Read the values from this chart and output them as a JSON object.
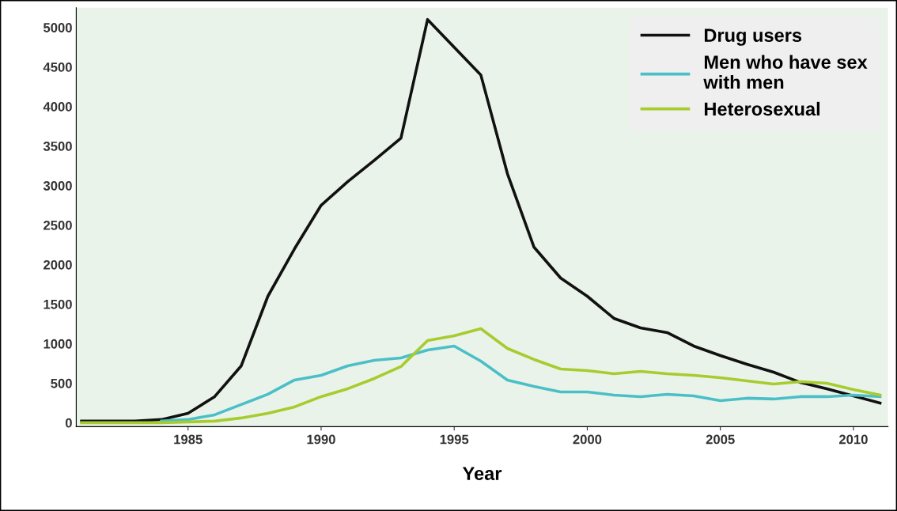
{
  "chart_data": {
    "type": "line",
    "xlabel": "Year",
    "x": [
      1981,
      1982,
      1983,
      1984,
      1985,
      1986,
      1987,
      1988,
      1989,
      1990,
      1991,
      1992,
      1993,
      1994,
      1995,
      1996,
      1997,
      1998,
      1999,
      2000,
      2001,
      2002,
      2003,
      2004,
      2005,
      2006,
      2007,
      2008,
      2009,
      2010,
      2011
    ],
    "series": [
      {
        "name": "Drug users",
        "color": "#111111",
        "values": [
          20,
          20,
          20,
          40,
          120,
          330,
          720,
          1600,
          2200,
          2750,
          3050,
          3320,
          3600,
          5100,
          4750,
          4400,
          3150,
          2220,
          1830,
          1600,
          1320,
          1200,
          1140,
          970,
          850,
          740,
          640,
          510,
          430,
          340,
          250
        ]
      },
      {
        "name": "Men who have sex\nwith men",
        "color": "#4bbfc8",
        "values": [
          null,
          null,
          null,
          20,
          40,
          100,
          230,
          360,
          540,
          600,
          720,
          790,
          820,
          920,
          970,
          780,
          540,
          460,
          390,
          390,
          350,
          330,
          360,
          340,
          280,
          310,
          300,
          330,
          330,
          350,
          330
        ]
      },
      {
        "name": "Heterosexual",
        "color": "#a6cc2e",
        "values": [
          0,
          0,
          0,
          0,
          10,
          20,
          60,
          120,
          200,
          330,
          430,
          560,
          710,
          1040,
          1100,
          1190,
          940,
          800,
          680,
          660,
          620,
          650,
          620,
          600,
          570,
          530,
          490,
          520,
          500,
          420,
          350
        ]
      }
    ],
    "xlim": [
      1980.8,
      2011.3
    ],
    "ylim": [
      -50,
      5250
    ],
    "xticks": [
      1985,
      1990,
      1995,
      2000,
      2005,
      2010
    ],
    "yticks": [
      0,
      500,
      1000,
      1500,
      2000,
      2500,
      3000,
      3500,
      4000,
      4500,
      5000
    ],
    "grid": false,
    "legend": "top right",
    "marker": "none",
    "line_style": "solid"
  }
}
